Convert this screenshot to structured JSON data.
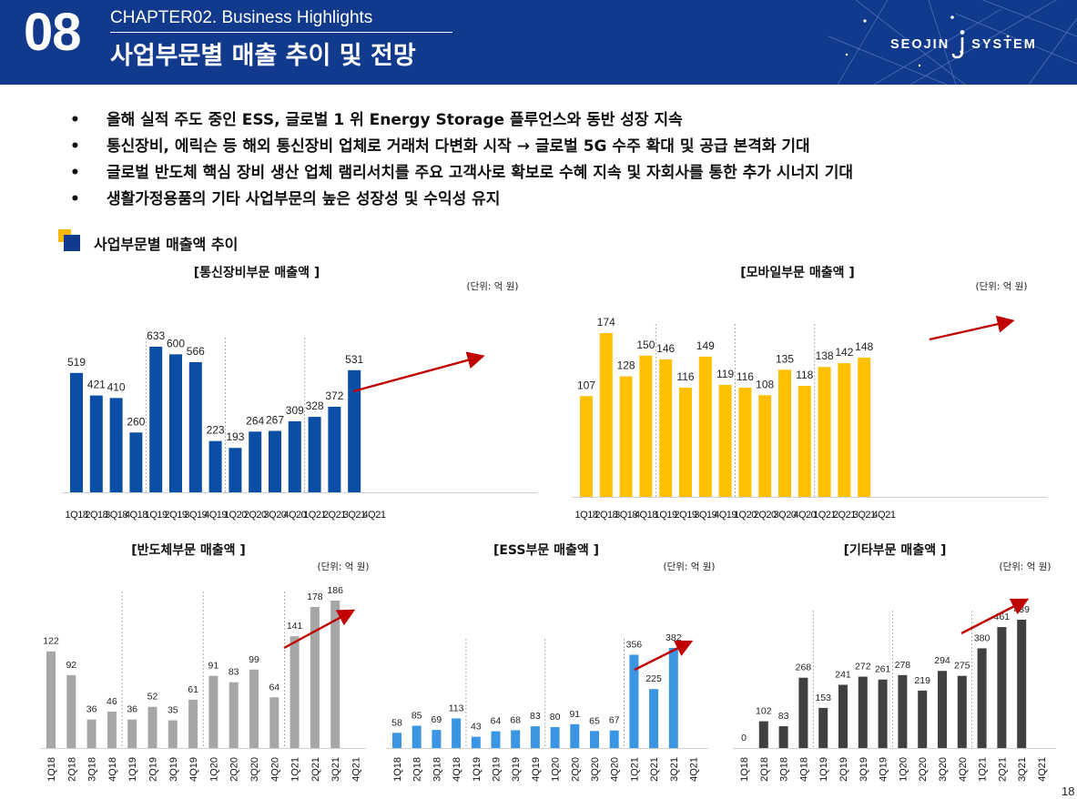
{
  "header": {
    "chapter_number": "08",
    "chapter_label": "CHAPTER02. Business Highlights",
    "title": "사업부문별 매출 추이 및 전망",
    "logo_left": "SEOJIN",
    "logo_right": "SYSTEM"
  },
  "bullets": [
    {
      "marker": "•",
      "text": "올해 실적 주도 중인 ESS, 글로벌 1 위 Energy Storage 플루언스와 동반 성장 지속"
    },
    {
      "marker": "•",
      "text": "통신장비, 에릭슨 등 해외 통신장비 업체로 거래처 다변화 시작 → 글로벌 5G 수주 확대 및 공급 본격화 기대"
    },
    {
      "marker": "•",
      "text": "글로벌 반도체 핵심 장비 생산 업체 램리서치를 주요 고객사로 확보로 수혜 지속 및 자회사를 통한 추가 시너지 기대"
    },
    {
      "marker": "•",
      "text": "생활가정용품의 기타 사업부문의 높은 성장성 및 수익성 유지"
    }
  ],
  "section_title": "사업부문별 매출액 추이",
  "page_number": "18",
  "colors": {
    "header_bg": "#123a8c",
    "telecom": "#0a4ea6",
    "mobile": "#ffc000",
    "semi": "#a6a6a6",
    "ess": "#3a95e3",
    "other": "#404040",
    "arrow": "#c00000"
  },
  "chart_data": [
    {
      "id": "telecom",
      "type": "bar",
      "title": "[통신장비부문 매출액 ]",
      "unit": "(단위: 억 원)",
      "categories": [
        "1Q18",
        "2Q18",
        "3Q18",
        "4Q18",
        "1Q19",
        "2Q19",
        "3Q19",
        "4Q19",
        "1Q20",
        "2Q20",
        "3Q20",
        "4Q20",
        "1Q21",
        "2Q21",
        "3Q21",
        "4Q21"
      ],
      "values": [
        519,
        421,
        410,
        260,
        633,
        600,
        566,
        223,
        193,
        264,
        267,
        309,
        328,
        372,
        531,
        null
      ],
      "ylim": [
        0,
        700
      ],
      "color": "#0a4ea6"
    },
    {
      "id": "mobile",
      "type": "bar",
      "title": "[모바일부문 매출액 ]",
      "unit": "(단위: 억 원)",
      "categories": [
        "1Q18",
        "2Q18",
        "3Q18",
        "4Q18",
        "1Q19",
        "2Q19",
        "3Q19",
        "4Q19",
        "1Q20",
        "2Q20",
        "3Q20",
        "4Q20",
        "1Q21",
        "2Q21",
        "3Q21",
        "4Q21"
      ],
      "values": [
        107,
        174,
        128,
        150,
        146,
        116,
        149,
        119,
        116,
        108,
        135,
        118,
        138,
        142,
        148,
        null
      ],
      "ylim": [
        0,
        200
      ],
      "color": "#ffc000"
    },
    {
      "id": "semi",
      "type": "bar",
      "title": "[반도체부문 매출액 ]",
      "unit": "(단위: 억 원)",
      "categories": [
        "1Q18",
        "2Q18",
        "3Q18",
        "4Q18",
        "1Q19",
        "2Q19",
        "3Q19",
        "4Q19",
        "1Q20",
        "2Q20",
        "3Q20",
        "4Q20",
        "1Q21",
        "2Q21",
        "3Q21",
        "4Q21"
      ],
      "values": [
        122,
        92,
        36,
        46,
        36,
        52,
        35,
        61,
        91,
        83,
        99,
        64,
        141,
        178,
        186,
        null
      ],
      "ylim": [
        0,
        200
      ],
      "color": "#a6a6a6"
    },
    {
      "id": "ess",
      "type": "bar",
      "title": "[ESS부문 매출액 ]",
      "unit": "(단위: 억 원)",
      "categories": [
        "1Q18",
        "2Q18",
        "3Q18",
        "4Q18",
        "1Q19",
        "2Q19",
        "3Q19",
        "4Q19",
        "1Q20",
        "2Q20",
        "3Q20",
        "4Q20",
        "1Q21",
        "2Q21",
        "3Q21",
        "4Q21"
      ],
      "values": [
        58,
        85,
        69,
        113,
        43,
        64,
        68,
        83,
        80,
        91,
        65,
        67,
        356,
        225,
        382,
        null
      ],
      "ylim": [
        0,
        400
      ],
      "color": "#3a95e3"
    },
    {
      "id": "other",
      "type": "bar",
      "title": "[기타부문 매출액 ]",
      "unit": "(단위: 억 원)",
      "categories": [
        "1Q18",
        "2Q18",
        "3Q18",
        "4Q18",
        "1Q19",
        "2Q19",
        "3Q19",
        "4Q19",
        "1Q20",
        "2Q20",
        "3Q20",
        "4Q20",
        "1Q21",
        "2Q21",
        "3Q21",
        "4Q21"
      ],
      "values": [
        0,
        102,
        83,
        268,
        153,
        241,
        272,
        261,
        278,
        219,
        294,
        275,
        380,
        461,
        489,
        null
      ],
      "ylim": [
        0,
        500
      ],
      "color": "#404040"
    }
  ]
}
